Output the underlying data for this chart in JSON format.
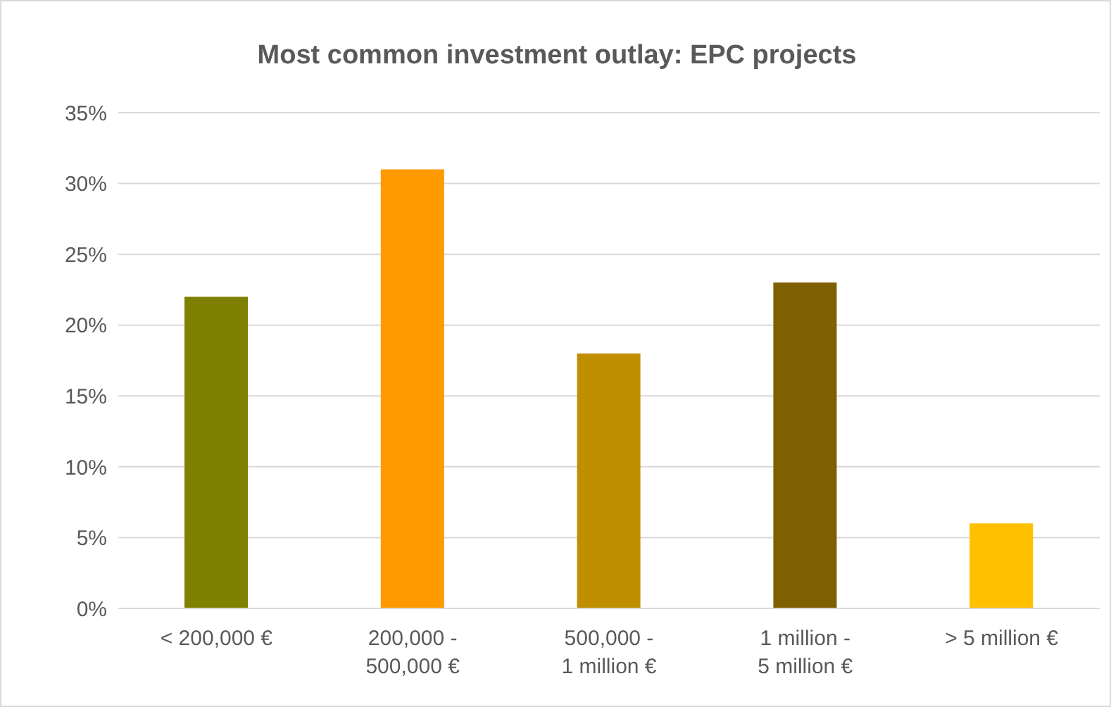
{
  "chart_data": {
    "type": "bar",
    "title": "Most common investment outlay: EPC projects",
    "categories": [
      "< 200,000 €",
      "200,000 - 500,000 €",
      "500,000 - 1 million €",
      "1 million - 5 million €",
      "> 5 million €"
    ],
    "values": [
      22,
      31,
      18,
      23,
      6
    ],
    "colors": [
      "#808000",
      "#ff9900",
      "#bf8f00",
      "#7f6000",
      "#ffc000"
    ],
    "ylim": [
      0,
      35
    ],
    "yticks": [
      {
        "value": 0,
        "label": "0%"
      },
      {
        "value": 5,
        "label": "5%"
      },
      {
        "value": 10,
        "label": "10%"
      },
      {
        "value": 15,
        "label": "15%"
      },
      {
        "value": 20,
        "label": "20%"
      },
      {
        "value": 25,
        "label": "25%"
      },
      {
        "value": 30,
        "label": "30%"
      },
      {
        "value": 35,
        "label": "35%"
      }
    ],
    "grid": "y"
  }
}
